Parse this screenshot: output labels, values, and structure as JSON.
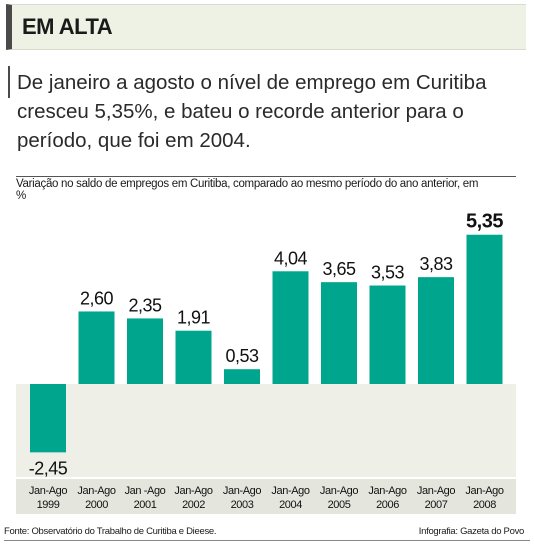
{
  "header": {
    "title": "EM ALTA"
  },
  "lead": "De janeiro a agosto o nível de emprego em Curitiba cresceu 5,35%, e bateu o recorde anterior para o período, que foi em 2004.",
  "chart_caption": "Variação no saldo de empregos em Curitiba, comparado ao mesmo período do ano anterior, em %",
  "footer": {
    "source": "Fonte: Observatório do Trabalho de Curitiba e Dieese.",
    "credit": "Infografia: Gazeta do Povo"
  },
  "colors": {
    "bar": "#00a58e",
    "panel_bg": "#eef0e8",
    "header_bg": "#eef2e4"
  },
  "chart_data": {
    "type": "bar",
    "title": "Variação no saldo de empregos em Curitiba, comparado ao mesmo período do ano anterior, em %",
    "xlabel": "",
    "ylabel": "",
    "categories": [
      [
        "Jan-Ago",
        "1999"
      ],
      [
        "Jan-Ago",
        "2000"
      ],
      [
        "Jan -Ago",
        "2001"
      ],
      [
        "Jan-Ago",
        "2002"
      ],
      [
        "Jan-Ago",
        "2003"
      ],
      [
        "Jan-Ago",
        "2004"
      ],
      [
        "Jan-Ago",
        "2005"
      ],
      [
        "Jan-Ago",
        "2006"
      ],
      [
        "Jan-Ago",
        "2007"
      ],
      [
        "Jan-Ago",
        "2008"
      ]
    ],
    "values": [
      -2.45,
      2.6,
      2.35,
      1.91,
      0.53,
      4.04,
      3.65,
      3.53,
      3.83,
      5.35
    ],
    "value_labels": [
      "-2,45",
      "2,60",
      "2,35",
      "1,91",
      "0,53",
      "4,04",
      "3,65",
      "3,53",
      "3,83",
      "5,35"
    ],
    "highlight_index": 9,
    "ylim": [
      -2.45,
      5.35
    ],
    "grid": false
  }
}
